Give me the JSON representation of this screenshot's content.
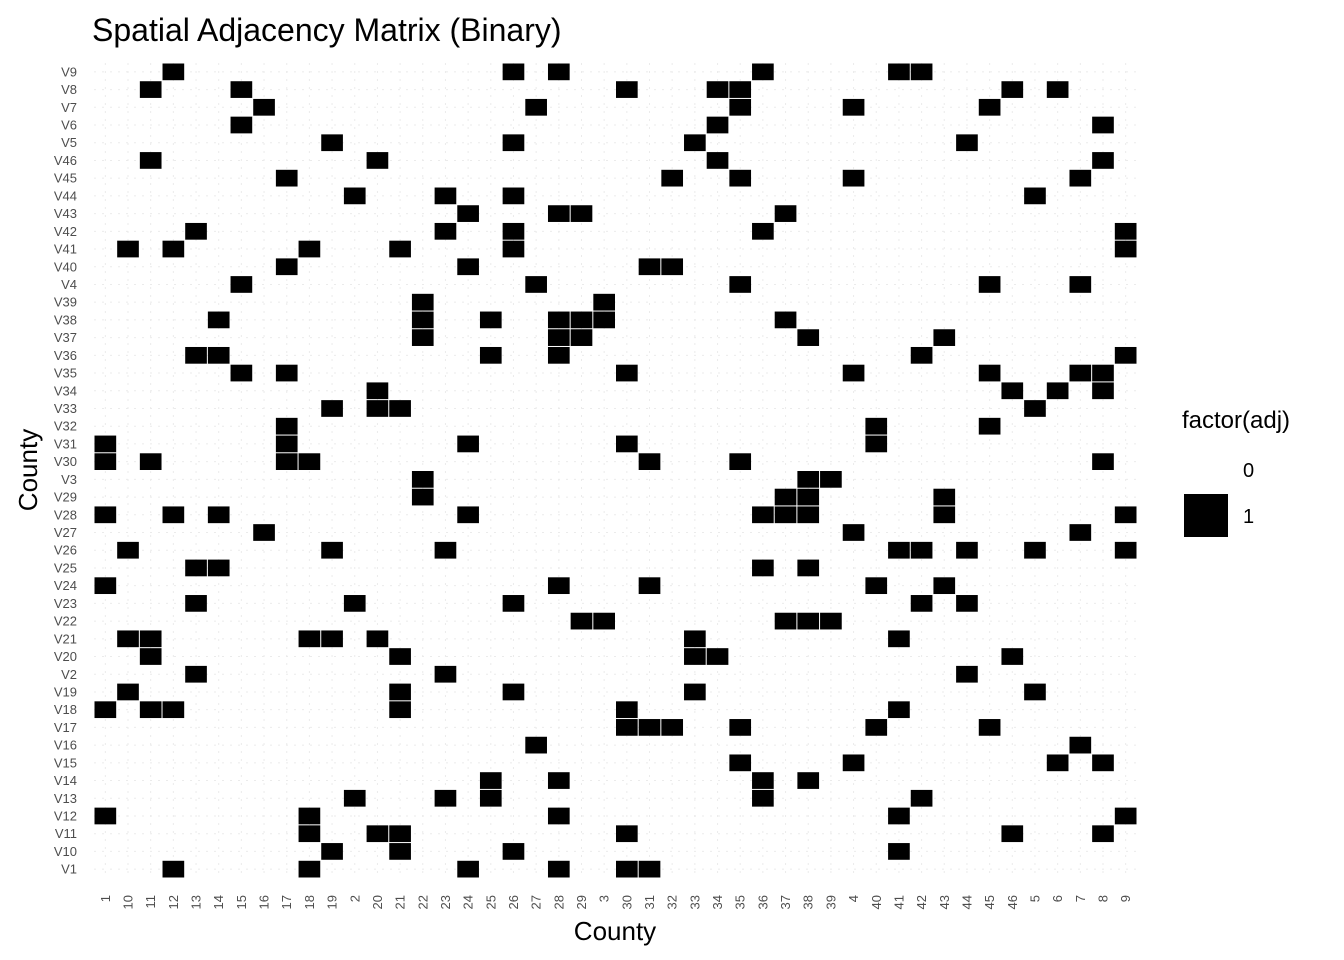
{
  "chart_data": {
    "type": "heatmap",
    "title": "Spatial Adjacency Matrix (Binary)",
    "xlabel": "County",
    "ylabel": "County",
    "x_categories": [
      "1",
      "10",
      "11",
      "12",
      "13",
      "14",
      "15",
      "16",
      "17",
      "18",
      "19",
      "2",
      "20",
      "21",
      "22",
      "23",
      "24",
      "25",
      "26",
      "27",
      "28",
      "29",
      "3",
      "30",
      "31",
      "32",
      "33",
      "34",
      "35",
      "36",
      "37",
      "38",
      "39",
      "4",
      "40",
      "41",
      "42",
      "43",
      "44",
      "45",
      "46",
      "5",
      "6",
      "7",
      "8",
      "9"
    ],
    "y_categories": [
      "V1",
      "V10",
      "V11",
      "V12",
      "V13",
      "V14",
      "V15",
      "V16",
      "V17",
      "V18",
      "V19",
      "V2",
      "V20",
      "V21",
      "V22",
      "V23",
      "V24",
      "V25",
      "V26",
      "V27",
      "V28",
      "V29",
      "V3",
      "V30",
      "V31",
      "V32",
      "V33",
      "V34",
      "V35",
      "V36",
      "V37",
      "V38",
      "V39",
      "V4",
      "V40",
      "V41",
      "V42",
      "V43",
      "V44",
      "V45",
      "V46",
      "V5",
      "V6",
      "V7",
      "V8",
      "V9"
    ],
    "fill_colors": {
      "0": "#ffffff",
      "1": "#000000"
    },
    "legend": {
      "title": "factor(adj)",
      "entries": [
        "0",
        "1"
      ],
      "position": "right"
    },
    "grid": true,
    "cells": {
      "V9": [
        "12",
        "26",
        "28",
        "36",
        "41",
        "42"
      ],
      "V8": [
        "11",
        "15",
        "30",
        "34",
        "35",
        "46",
        "6"
      ],
      "V7": [
        "16",
        "27",
        "35",
        "4",
        "45"
      ],
      "V6": [
        "15",
        "34",
        "8"
      ],
      "V5": [
        "19",
        "26",
        "33",
        "44"
      ],
      "V46": [
        "11",
        "20",
        "34",
        "8"
      ],
      "V45": [
        "17",
        "32",
        "35",
        "4",
        "7"
      ],
      "V44": [
        "2",
        "23",
        "26",
        "5"
      ],
      "V43": [
        "24",
        "28",
        "29",
        "37"
      ],
      "V42": [
        "13",
        "23",
        "26",
        "36",
        "9"
      ],
      "V41": [
        "10",
        "12",
        "18",
        "21",
        "26",
        "9"
      ],
      "V40": [
        "17",
        "24",
        "31",
        "32"
      ],
      "V4": [
        "15",
        "27",
        "35",
        "45",
        "7"
      ],
      "V39": [
        "22",
        "3"
      ],
      "V38": [
        "14",
        "22",
        "25",
        "28",
        "29",
        "3",
        "37"
      ],
      "V37": [
        "22",
        "28",
        "29",
        "38",
        "43"
      ],
      "V36": [
        "13",
        "14",
        "25",
        "28",
        "42",
        "9"
      ],
      "V35": [
        "15",
        "17",
        "30",
        "4",
        "45",
        "7",
        "8"
      ],
      "V34": [
        "20",
        "46",
        "6",
        "8"
      ],
      "V33": [
        "19",
        "20",
        "21",
        "5"
      ],
      "V32": [
        "17",
        "40",
        "45"
      ],
      "V31": [
        "1",
        "17",
        "24",
        "30",
        "40"
      ],
      "V30": [
        "1",
        "11",
        "17",
        "18",
        "31",
        "35",
        "8"
      ],
      "V3": [
        "22",
        "38",
        "39"
      ],
      "V29": [
        "22",
        "37",
        "38",
        "43"
      ],
      "V28": [
        "1",
        "12",
        "14",
        "24",
        "36",
        "37",
        "38",
        "43",
        "9"
      ],
      "V27": [
        "16",
        "4",
        "7"
      ],
      "V26": [
        "10",
        "19",
        "23",
        "41",
        "42",
        "44",
        "5",
        "9"
      ],
      "V25": [
        "13",
        "14",
        "36",
        "38"
      ],
      "V24": [
        "1",
        "28",
        "31",
        "40",
        "43"
      ],
      "V23": [
        "13",
        "2",
        "26",
        "42",
        "44"
      ],
      "V22": [
        "29",
        "3",
        "37",
        "38",
        "39"
      ],
      "V21": [
        "10",
        "11",
        "18",
        "19",
        "20",
        "33",
        "41"
      ],
      "V20": [
        "11",
        "21",
        "33",
        "34",
        "46"
      ],
      "V2": [
        "13",
        "23",
        "44"
      ],
      "V19": [
        "10",
        "21",
        "26",
        "33",
        "5"
      ],
      "V18": [
        "1",
        "11",
        "12",
        "21",
        "30",
        "41"
      ],
      "V17": [
        "30",
        "31",
        "32",
        "35",
        "40",
        "45"
      ],
      "V16": [
        "27",
        "7"
      ],
      "V15": [
        "35",
        "4",
        "6",
        "8"
      ],
      "V14": [
        "25",
        "28",
        "36",
        "38"
      ],
      "V13": [
        "2",
        "23",
        "25",
        "36",
        "42"
      ],
      "V12": [
        "1",
        "18",
        "28",
        "41",
        "9"
      ],
      "V11": [
        "18",
        "20",
        "21",
        "30",
        "46",
        "8"
      ],
      "V10": [
        "19",
        "21",
        "26",
        "41"
      ],
      "V1": [
        "12",
        "18",
        "24",
        "28",
        "30",
        "31"
      ]
    }
  }
}
